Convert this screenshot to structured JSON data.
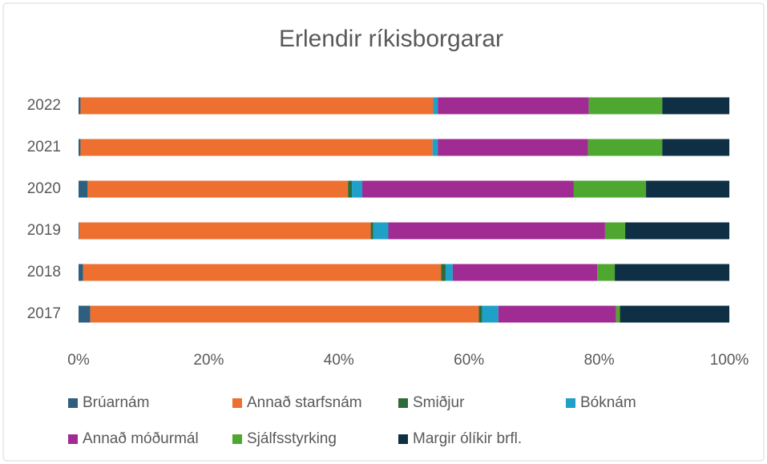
{
  "chart_data": {
    "type": "bar",
    "orientation": "horizontal",
    "stacked": true,
    "title": "Erlendir ríkisborgarar",
    "categories": [
      "2022",
      "2021",
      "2020",
      "2019",
      "2018",
      "2017"
    ],
    "series": [
      {
        "name": "Brúarnám",
        "color": "#2e5f7f",
        "values": [
          0.3,
          0.3,
          1.4,
          0.1,
          0.7,
          1.8
        ]
      },
      {
        "name": "Annað starfsnám",
        "color": "#ed7031",
        "values": [
          54.2,
          54.1,
          40.0,
          44.8,
          55.0,
          59.7
        ]
      },
      {
        "name": "Smiðjur",
        "color": "#2e6b3a",
        "values": [
          0,
          0,
          0.6,
          0.4,
          0.7,
          0.5
        ]
      },
      {
        "name": "Bóknám",
        "color": "#1fa0c9",
        "values": [
          0.7,
          0.8,
          1.6,
          2.3,
          1.1,
          2.5
        ]
      },
      {
        "name": "Annað móðurmál",
        "color": "#a02b93",
        "values": [
          23.2,
          23.1,
          32.5,
          33.3,
          22.2,
          18.1
        ]
      },
      {
        "name": "Sjálfsstyrking",
        "color": "#4ea72e",
        "values": [
          11.3,
          11.4,
          11.1,
          3.1,
          2.7,
          0.6
        ]
      },
      {
        "name": "Margir ólíkir brfl.",
        "color": "#0e2f44",
        "values": [
          10.3,
          10.3,
          12.8,
          16.0,
          17.6,
          16.8
        ]
      }
    ],
    "xlim": [
      0,
      100
    ],
    "xticks": [
      {
        "value": 0,
        "label": "0%"
      },
      {
        "value": 20,
        "label": "20%"
      },
      {
        "value": 40,
        "label": "40%"
      },
      {
        "value": 60,
        "label": "60%"
      },
      {
        "value": 80,
        "label": "80%"
      },
      {
        "value": 100,
        "label": "100%"
      }
    ],
    "grid": false,
    "legend": "bottom"
  }
}
